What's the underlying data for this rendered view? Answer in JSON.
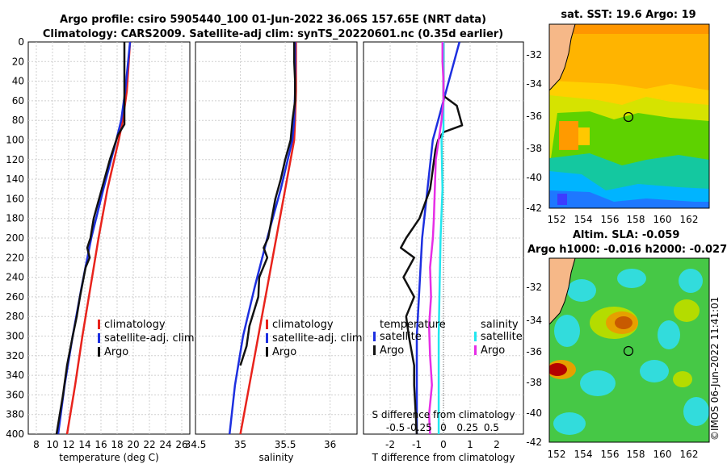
{
  "title": {
    "line1": "Argo profile: csiro 5905440_100 01-Jun-2022 36.06S 157.65E (NRT data)",
    "line2": "Climatology: CARS2009. Satellite-adj clim: synTS_20220601.nc (0.35d earlier)"
  },
  "stamp": "©IMOS 06-Jun-2022 11:41:01",
  "colors": {
    "clim": "#e8231c",
    "sat": "#1d2fe0",
    "argo": "#111111",
    "sdiff_sat": "#22e6ef",
    "sdiff_argo": "#e62ee6"
  },
  "chart_data": [
    {
      "id": "temperature",
      "type": "line",
      "xlabel": "temperature (deg C)",
      "ylabel": "",
      "xlim": [
        7,
        27
      ],
      "ylim": [
        400,
        0
      ],
      "xticks": [
        "8",
        "10",
        "12",
        "14",
        "16",
        "18",
        "20",
        "22",
        "24",
        "26"
      ],
      "yticks": [
        "0",
        "20",
        "40",
        "60",
        "80",
        "100",
        "120",
        "140",
        "160",
        "180",
        "200",
        "220",
        "240",
        "260",
        "280",
        "300",
        "320",
        "340",
        "360",
        "380",
        "400"
      ],
      "legend": [
        "climatology",
        "satellite-adj. clim",
        "Argo"
      ],
      "series": [
        {
          "name": "climatology",
          "depth": [
            0,
            50,
            80,
            100,
            150,
            200,
            250,
            300,
            350,
            400
          ],
          "values": [
            19.6,
            19.2,
            18.7,
            18.2,
            16.8,
            15.7,
            14.7,
            13.7,
            12.8,
            11.8
          ]
        },
        {
          "name": "satellite-adj. clim",
          "depth": [
            0,
            50,
            80,
            100,
            150,
            200,
            250,
            300,
            350,
            400
          ],
          "values": [
            19.6,
            19.0,
            18.5,
            17.9,
            16.3,
            14.8,
            13.6,
            12.5,
            11.5,
            10.7
          ]
        },
        {
          "name": "Argo",
          "depth": [
            0,
            20,
            40,
            60,
            75,
            84,
            95,
            120,
            150,
            180,
            200,
            210,
            220,
            230,
            260,
            280,
            300,
            330,
            360,
            400
          ],
          "values": [
            18.9,
            18.9,
            18.9,
            18.9,
            18.9,
            18.9,
            18.1,
            17.1,
            16.1,
            15.1,
            14.7,
            14.3,
            14.6,
            14.1,
            13.4,
            13.0,
            12.5,
            11.8,
            11.3,
            10.5
          ]
        }
      ]
    },
    {
      "id": "salinity",
      "type": "line",
      "xlabel": "salinity",
      "ylabel": "",
      "xlim": [
        34.5,
        36.3
      ],
      "ylim": [
        400,
        0
      ],
      "xticks": [
        "34.5",
        "35",
        "35.5",
        "36"
      ],
      "legend": [
        "climatology",
        "satellite-adj. clim",
        "Argo"
      ],
      "series": [
        {
          "name": "climatology",
          "depth": [
            0,
            50,
            80,
            100,
            150,
            200,
            250,
            300,
            350,
            400
          ],
          "values": [
            35.62,
            35.62,
            35.61,
            35.6,
            35.5,
            35.4,
            35.3,
            35.2,
            35.1,
            35.0
          ]
        },
        {
          "name": "satellite-adj. clim",
          "depth": [
            0,
            50,
            80,
            100,
            150,
            200,
            250,
            300,
            350,
            400
          ],
          "values": [
            35.61,
            35.61,
            35.6,
            35.58,
            35.45,
            35.3,
            35.16,
            35.03,
            34.94,
            34.88
          ]
        },
        {
          "name": "Argo",
          "depth": [
            0,
            20,
            40,
            60,
            80,
            100,
            120,
            140,
            160,
            180,
            200,
            210,
            220,
            240,
            260,
            290,
            310,
            330
          ],
          "values": [
            35.6,
            35.6,
            35.61,
            35.61,
            35.58,
            35.56,
            35.5,
            35.45,
            35.39,
            35.35,
            35.31,
            35.26,
            35.3,
            35.21,
            35.2,
            35.1,
            35.07,
            35.0
          ]
        }
      ]
    },
    {
      "id": "difference",
      "type": "line",
      "xlabel": "T difference from climatology",
      "top_label": "S difference from climatology",
      "xlim": [
        -3,
        3
      ],
      "ylim": [
        400,
        0
      ],
      "xticks": [
        "-2",
        "-1",
        "0",
        "1",
        "2"
      ],
      "sxticks": [
        "-0.5",
        "-0.25",
        "0",
        "0.25",
        "0.5"
      ],
      "legend_left_title": "temperature",
      "legend_left": [
        "satellite",
        "Argo"
      ],
      "legend_right_title": "salinity",
      "legend_right": [
        "satellite",
        "Argo"
      ],
      "series": [
        {
          "name": "temperature satellite",
          "depth": [
            0,
            20,
            40,
            60,
            80,
            100,
            150,
            200,
            250,
            300,
            350,
            400
          ],
          "values": [
            0.6,
            0.4,
            0.2,
            0,
            -0.2,
            -0.4,
            -0.6,
            -0.8,
            -0.9,
            -1.0,
            -1.0,
            -1.0
          ]
        },
        {
          "name": "temperature Argo",
          "depth": [
            0,
            40,
            55,
            65,
            75,
            85,
            92,
            100,
            110,
            150,
            180,
            200,
            210,
            220,
            240,
            260,
            280,
            300,
            330,
            350,
            400
          ],
          "values": [
            0,
            0,
            0,
            0.5,
            0.6,
            0.7,
            0,
            -0.2,
            -0.3,
            -0.5,
            -0.9,
            -1.4,
            -1.6,
            -1.1,
            -1.5,
            -1.1,
            -1.4,
            -1.3,
            -1.1,
            -1.1,
            -1.0
          ]
        },
        {
          "name": "salinity satellite",
          "depth": [
            0,
            90,
            100,
            150,
            200,
            250,
            300,
            350,
            400
          ],
          "values": [
            0,
            0,
            -0.02,
            -0.01,
            -0.03,
            -0.04,
            -0.05,
            -0.05,
            -0.05
          ]
        },
        {
          "name": "salinity Argo",
          "depth": [
            0,
            20,
            40,
            60,
            80,
            100,
            120,
            150,
            180,
            200,
            230,
            260,
            290,
            320,
            350,
            380,
            400
          ],
          "values": [
            -0.01,
            -0.01,
            0,
            0,
            -0.02,
            -0.05,
            -0.08,
            -0.09,
            -0.1,
            -0.11,
            -0.14,
            -0.13,
            -0.15,
            -0.14,
            -0.12,
            -0.15,
            -0.14
          ]
        }
      ]
    }
  ],
  "maps": [
    {
      "id": "sst",
      "title": "sat. SST: 19.6 Argo: 19",
      "lat_ticks": [
        "-32",
        "-34",
        "-36",
        "-38",
        "-40",
        "-42"
      ],
      "lon_ticks": [
        "152",
        "154",
        "156",
        "158",
        "160",
        "162"
      ],
      "marker": {
        "lon": 157.65,
        "lat": -36.06
      }
    },
    {
      "id": "sla",
      "title1": "Altim. SLA: -0.059",
      "title2": "Argo h1000: -0.016 h2000: -0.027",
      "lat_ticks": [
        "-32",
        "-34",
        "-36",
        "-38",
        "-40",
        "-42"
      ],
      "lon_ticks": [
        "152",
        "154",
        "156",
        "158",
        "160",
        "162"
      ],
      "marker": {
        "lon": 157.65,
        "lat": -36.06
      }
    }
  ]
}
